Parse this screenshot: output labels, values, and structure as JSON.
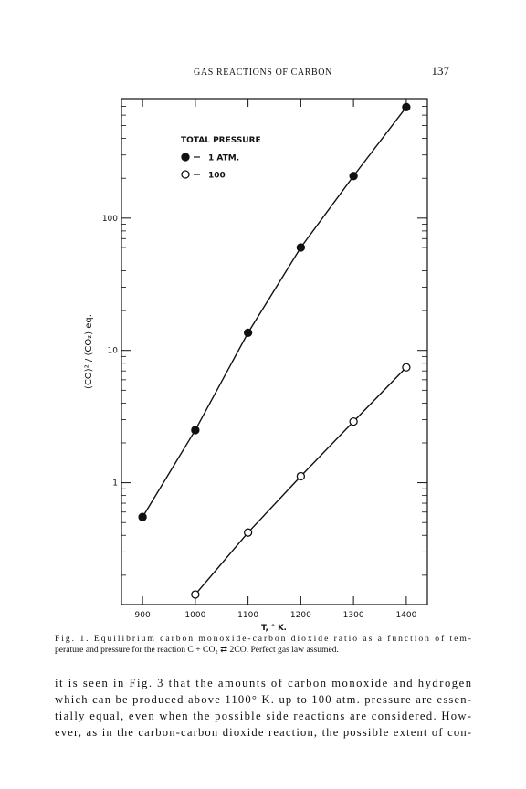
{
  "header": {
    "title": "GAS REACTIONS OF CARBON",
    "page": "137"
  },
  "chart_data": {
    "type": "line",
    "x_label": "T, ° K.",
    "y_label": "(CO)² / (CO₂) eq.",
    "legend_title": "TOTAL PRESSURE",
    "x": [
      900,
      1000,
      1100,
      1200,
      1300,
      1400
    ],
    "series": [
      {
        "name": "1 ATM.",
        "color": "#111111",
        "filled": true,
        "values": [
          0.55,
          2.5,
          13.6,
          60,
          208,
          690
        ]
      },
      {
        "name": "100",
        "color": "#111111",
        "filled": false,
        "values": [
          null,
          0.143,
          0.42,
          1.12,
          2.9,
          7.45
        ]
      }
    ],
    "xlim": [
      860,
      1440
    ],
    "xticks": [
      900,
      1000,
      1100,
      1200,
      1300,
      1400
    ],
    "ylim": [
      0.12,
      800
    ],
    "yticks": [
      1,
      10,
      100
    ],
    "log_y": true,
    "yminorticks": [
      0.2,
      0.3,
      0.4,
      0.5,
      0.6,
      0.7,
      0.8,
      0.9,
      2,
      3,
      4,
      5,
      6,
      7,
      8,
      9,
      20,
      30,
      40,
      50,
      60,
      70,
      80,
      90,
      200,
      300,
      400,
      500,
      600,
      700,
      800
    ]
  },
  "caption": [
    "Fig. 1. Equilibrium carbon monoxide-carbon dioxide ratio as a function of tem-",
    "perature and pressure for the reaction C + CO₂ ⇄ 2CO. Perfect gas law assumed."
  ],
  "body": [
    "it is seen in Fig. 3 that the amounts of carbon monoxide and hydrogen",
    "which can be produced above 1100° K. up to 100 atm. pressure are essen-",
    "tially equal, even when the possible side reactions are considered. How-",
    "ever, as in the carbon-carbon dioxide reaction, the possible extent of con-"
  ]
}
